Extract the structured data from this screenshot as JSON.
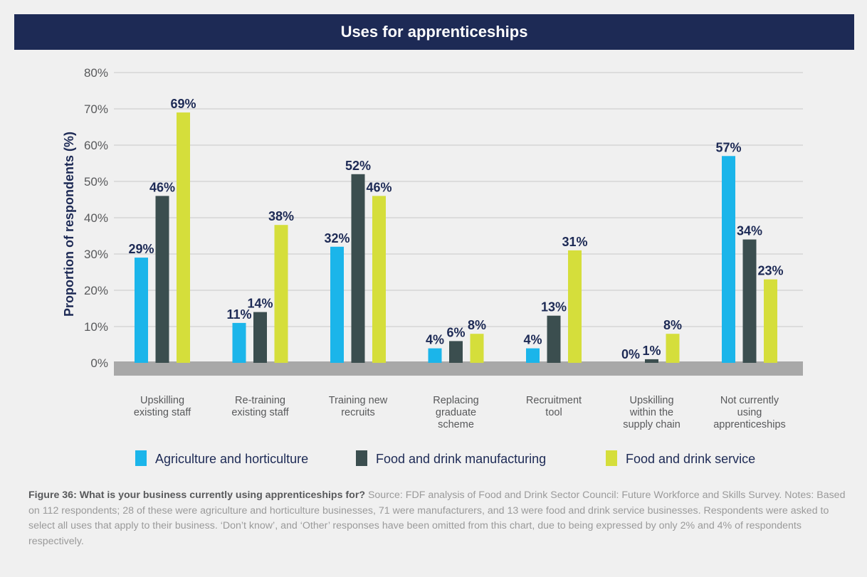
{
  "title": "Uses for apprenticeships",
  "caption": {
    "lead": "Figure 36: What is your business currently using apprenticeships for?",
    "body": " Source: FDF analysis of Food and Drink Sector Council: Future Workforce and Skills Survey. Notes: Based on 112 respondents; 28 of these were agriculture and horticulture businesses, 71 were manufacturers, and 13 were food and drink service businesses. Respondents were asked to select all uses that apply to their business. ‘Don’t know’, and ‘Other’ responses have been omitted from this chart, due to being expressed by only 2% and 4% of respondents respectively."
  },
  "chart_data": {
    "type": "bar",
    "title": "Uses for apprenticeships",
    "xlabel": "",
    "ylabel": "Proportion of respondents (%)",
    "ylim": [
      0,
      80
    ],
    "yticks": [
      0,
      10,
      20,
      30,
      40,
      50,
      60,
      70,
      80
    ],
    "ytick_labels": [
      "0%",
      "10%",
      "20%",
      "30%",
      "40%",
      "50%",
      "60%",
      "70%",
      "80%"
    ],
    "grid": true,
    "legend_position": "bottom",
    "categories": [
      [
        "Upskilling",
        "existing staff"
      ],
      [
        "Re-training",
        "existing staff"
      ],
      [
        "Training new",
        "recruits"
      ],
      [
        "Replacing",
        "graduate",
        "scheme"
      ],
      [
        "Recruitment",
        "tool"
      ],
      [
        "Upskilling",
        "within the",
        "supply chain"
      ],
      [
        "Not currently",
        "using",
        "apprenticeships"
      ]
    ],
    "series": [
      {
        "name": "Agriculture and horticulture",
        "color": "#1bb5ea",
        "values": [
          29,
          11,
          32,
          4,
          4,
          0,
          57
        ],
        "labels": [
          "29%",
          "11%",
          "32%",
          "4%",
          "4%",
          "0%",
          "57%"
        ]
      },
      {
        "name": "Food and drink manufacturing",
        "color": "#3b4e4f",
        "values": [
          46,
          14,
          52,
          6,
          13,
          1,
          34
        ],
        "labels": [
          "46%",
          "14%",
          "52%",
          "6%",
          "13%",
          "1%",
          "34%"
        ]
      },
      {
        "name": "Food and drink service",
        "color": "#d5de3b",
        "values": [
          69,
          38,
          46,
          8,
          31,
          8,
          23
        ],
        "labels": [
          "69%",
          "38%",
          "46%",
          "8%",
          "31%",
          "8%",
          "23%"
        ]
      }
    ]
  }
}
